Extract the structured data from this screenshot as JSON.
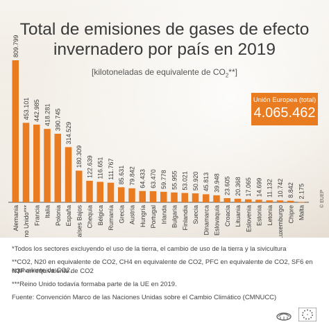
{
  "title_line1": "Total de emisiones de gases de efecto",
  "title_line2": "invernadero por país en 2019",
  "subtitle_prefix": "[kilotoneladas de equivalente de CO",
  "subtitle_sub": "2",
  "subtitle_suffix": "**]",
  "eu_total": {
    "label": "Unión Europea (total)",
    "value": "4.065.462"
  },
  "colors": {
    "bar": "#e97b21",
    "box": "#e97b21",
    "text": "#3a3a3a"
  },
  "chart_data": {
    "type": "bar",
    "title": "Total de emisiones de gases de efecto invernadero por país en 2019",
    "categories": [
      "Alemania",
      "Reino Unido***",
      "Francia",
      "Italia",
      "Polonia",
      "España",
      "Países Bajos",
      "Chequia",
      "Bélgica",
      "Rumanía",
      "Grecia",
      "Austria",
      "Hungría",
      "Portugal",
      "Irlanda",
      "Bulgaria",
      "Finlandia",
      "Suecia",
      "Dinamarca",
      "Eslovaquia",
      "Croacia",
      "Lituania",
      "Eslovenia",
      "Estonia",
      "Letonia",
      "Luxemburgo",
      "Chipre",
      "Malta"
    ],
    "value_labels": [
      "809.799",
      "453.101",
      "442.985",
      "418.281",
      "390.745",
      "314.529",
      "180.309",
      "122.639",
      "116.651",
      "111.767",
      "85.631",
      "79.842",
      "64.433",
      "63.470",
      "59.778",
      "55.955",
      "53.021",
      "50.920",
      "45.813",
      "39.948",
      "23.605",
      "20.368",
      "17.065",
      "14.699",
      "11.132",
      "10.742",
      "8.842",
      "2.175"
    ],
    "values": [
      809799,
      453101,
      442985,
      418281,
      390745,
      314529,
      180309,
      122639,
      116651,
      111767,
      85631,
      79842,
      64433,
      63470,
      59778,
      55955,
      53021,
      50920,
      45813,
      39948,
      23605,
      20368,
      17065,
      14699,
      11132,
      10742,
      8842,
      2175
    ],
    "ylim": [
      0,
      809799
    ]
  },
  "footnotes": {
    "n1": "*Todos los sectores excluyendo el  uso de la tierra, el cambio de uso de la tierra y la sivicultura",
    "n2a": "**CO2, N20 en equivalente de CO2, CH4 en equivalente de CO2, PFC en equivalente de CO2, SF6 en equivalente de CO2,",
    "n2b": "N3F en equivalente de CO2",
    "n3": "***Reino Unido todavía formaba parte de la UE en 2019.",
    "source": "Fuente:  Convención Marco de las Naciones Unidas sobre el Cambio Climático (CMNUCC)"
  },
  "copyright": "© EUEP",
  "logo_icon": "european-parliament-logo-icon"
}
